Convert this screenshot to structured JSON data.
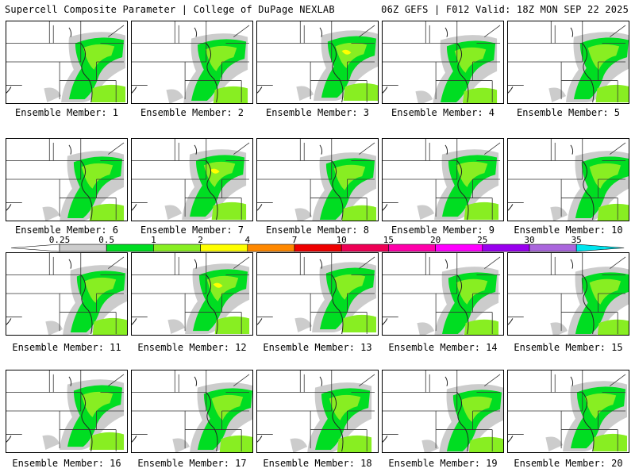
{
  "header": {
    "left": "Supercell Composite Parameter | College of DuPage NEXLAB",
    "right": "06Z GEFS | F012 Valid: 18Z MON SEP 22 2025"
  },
  "colorbar": {
    "labels": [
      "0.25",
      "0.5",
      "1",
      "2",
      "4",
      "7",
      "10",
      "15",
      "20",
      "25",
      "30",
      "35"
    ],
    "colors": [
      "#cccccc",
      "#00dd22",
      "#88ee22",
      "#ffff00",
      "#ff8800",
      "#ee0000",
      "#ee0055",
      "#ff00aa",
      "#ff00ff",
      "#9900ee",
      "#aa66dd",
      "#00e5ee"
    ]
  },
  "panels": [
    {
      "label": "Ensemble Member: 1"
    },
    {
      "label": "Ensemble Member: 2"
    },
    {
      "label": "Ensemble Member: 3"
    },
    {
      "label": "Ensemble Member: 4"
    },
    {
      "label": "Ensemble Member: 5"
    },
    {
      "label": "Ensemble Member: 6"
    },
    {
      "label": "Ensemble Member: 7"
    },
    {
      "label": "Ensemble Member: 8"
    },
    {
      "label": "Ensemble Member: 9"
    },
    {
      "label": "Ensemble Member: 10"
    },
    {
      "label": "Ensemble Member: 11"
    },
    {
      "label": "Ensemble Member: 12"
    },
    {
      "label": "Ensemble Member: 13"
    },
    {
      "label": "Ensemble Member: 14"
    },
    {
      "label": "Ensemble Member: 15"
    },
    {
      "label": "Ensemble Member: 16"
    },
    {
      "label": "Ensemble Member: 17"
    },
    {
      "label": "Ensemble Member: 18"
    },
    {
      "label": "Ensemble Member: 19"
    },
    {
      "label": "Ensemble Member: 20"
    }
  ]
}
